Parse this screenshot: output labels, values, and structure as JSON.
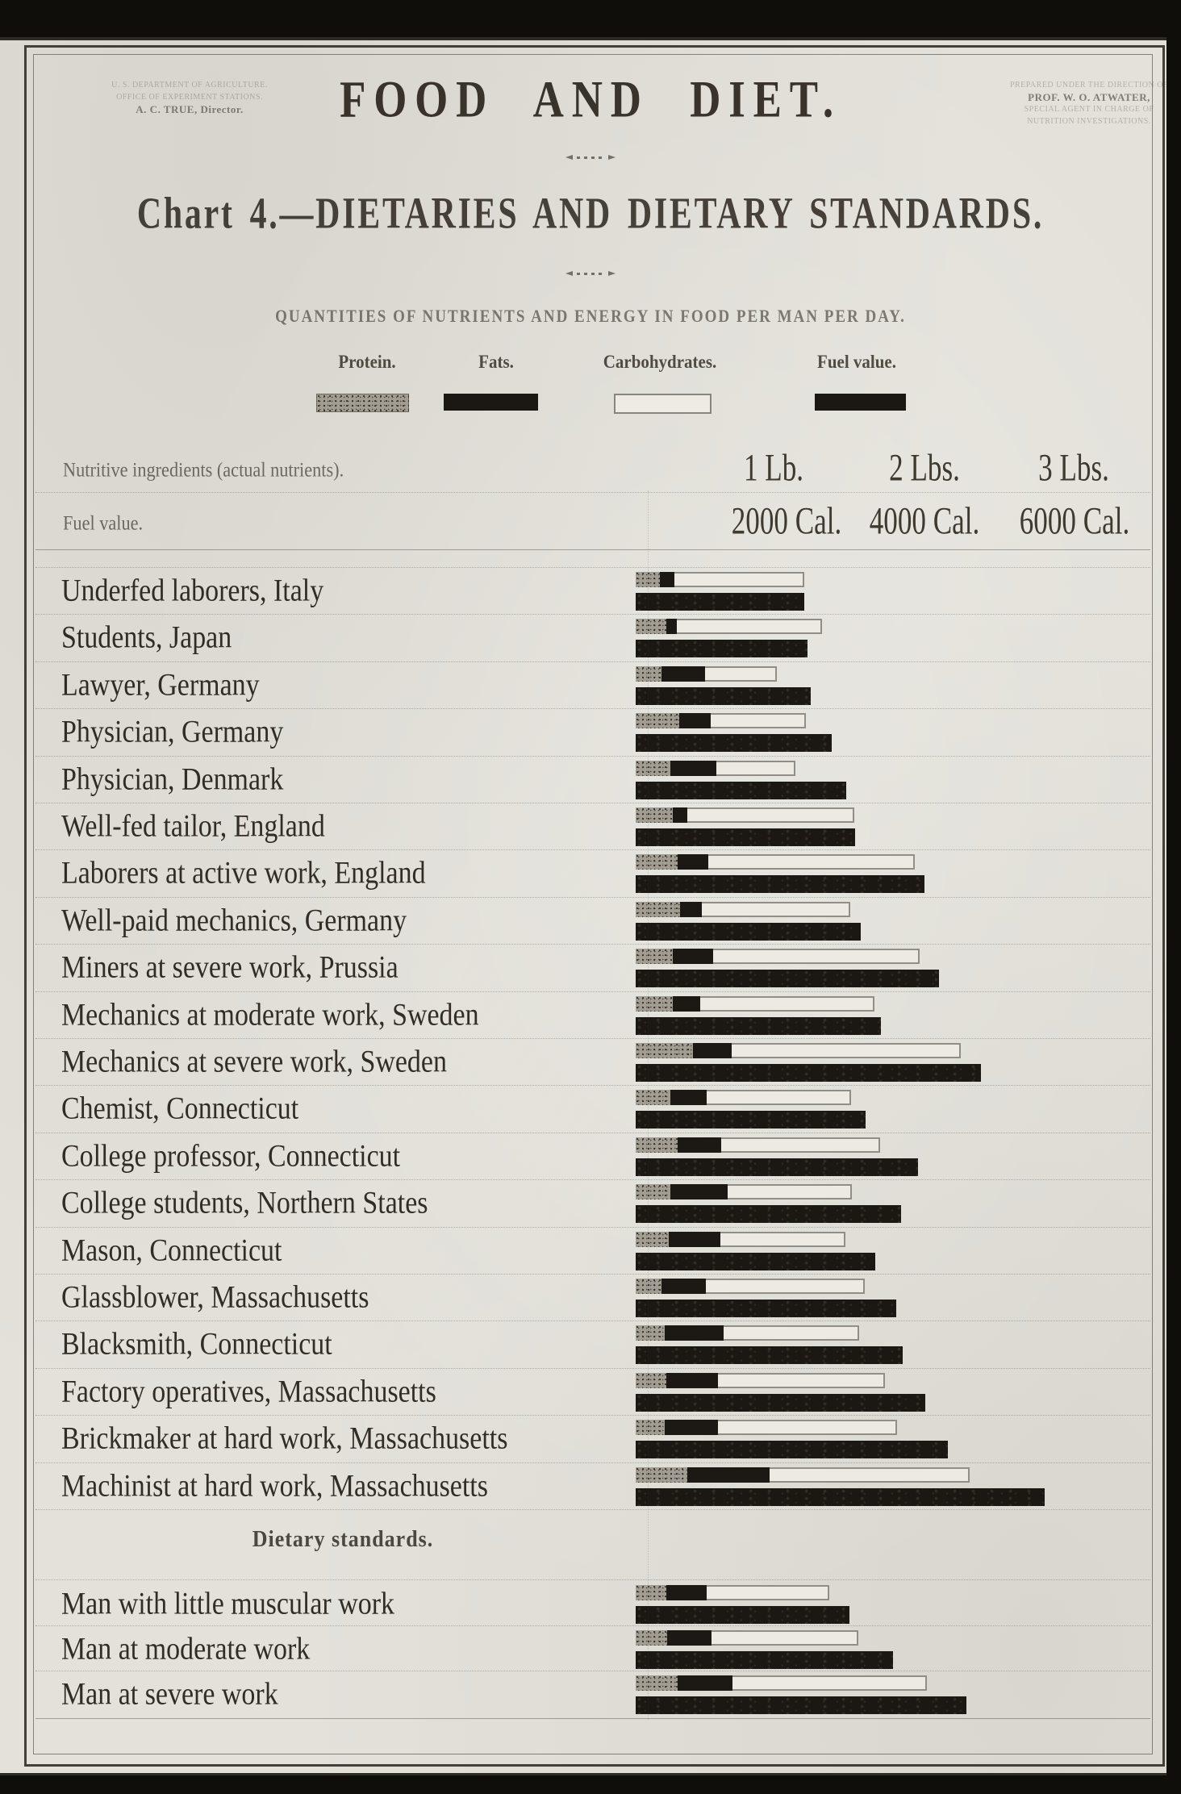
{
  "colors": {
    "paper": "#e3e1da",
    "ink": "#282319",
    "bar_black": "#1b1712",
    "protein_gray": "#a29d92",
    "carbohydrate_fill": "#eceae2"
  },
  "page": {
    "title": "FOOD  AND  DIET.",
    "chart_title": "Chart 4.—DIETARIES AND DIETARY STANDARDS.",
    "subtitle": "QUANTITIES OF NUTRIENTS AND ENERGY IN FOOD PER MAN PER DAY.",
    "credit_left": {
      "lines": [
        "U. S. DEPARTMENT OF AGRICULTURE.",
        "OFFICE OF EXPERIMENT STATIONS.",
        "A. C. TRUE, Director."
      ]
    },
    "credit_right": {
      "lines": [
        "PREPARED UNDER THE DIRECTION OF",
        "PROF. W. O. ATWATER,",
        "SPECIAL AGENT IN CHARGE OF",
        "NUTRITION INVESTIGATIONS."
      ]
    }
  },
  "legend": {
    "items": [
      {
        "label": "Protein.",
        "swatch": "protein"
      },
      {
        "label": "Fats.",
        "swatch": "fats"
      },
      {
        "label": "Carbohydrates.",
        "swatch": "carbohydrates"
      },
      {
        "label": "Fuel value.",
        "swatch": "fuel-value"
      }
    ]
  },
  "header": {
    "nutrients_label": "Nutritive ingredients (actual nutrients).",
    "fuel_label": "Fuel value.",
    "lb_ticks": [
      "1 Lb.",
      "2 Lbs.",
      "3 Lbs."
    ],
    "cal_ticks": [
      "2000 Cal.",
      "4000 Cal.",
      "6000 Cal."
    ]
  },
  "sections": {
    "standards_heading": "Dietary standards."
  },
  "chart_data": {
    "type": "bar",
    "orientation": "horizontal",
    "title": "Chart 4.—Dietaries and dietary standards",
    "subtitle": "Quantities of nutrients and energy in food per man per day",
    "series_legend": [
      "Protein",
      "Fats",
      "Carbohydrates",
      "Fuel value"
    ],
    "units": {
      "protein": "lb",
      "fats": "lb",
      "carbohydrates": "lb",
      "fuel": "Cal"
    },
    "x_axis": {
      "nutrients_ticks_lb": [
        1,
        2,
        3
      ],
      "nutrients_tick_labels": [
        "1 Lb.",
        "2 Lbs.",
        "3 Lbs."
      ],
      "fuel_ticks_cal": [
        2000,
        4000,
        6000
      ],
      "fuel_tick_labels": [
        "2000 Cal.",
        "4000 Cal.",
        "6000 Cal."
      ],
      "lb_max": 3.6,
      "grid": false
    },
    "rows": [
      {
        "label": "Underfed laborers, Italy",
        "group": "dietaries",
        "protein_lb": 0.17,
        "fats_lb": 0.1,
        "carbs_lb": 0.9,
        "fuel_cal": 2340
      },
      {
        "label": "Students, Japan",
        "group": "dietaries",
        "protein_lb": 0.21,
        "fats_lb": 0.07,
        "carbs_lb": 1.01,
        "fuel_cal": 2380
      },
      {
        "label": "Lawyer, Germany",
        "group": "dietaries",
        "protein_lb": 0.18,
        "fats_lb": 0.3,
        "carbs_lb": 0.5,
        "fuel_cal": 2430
      },
      {
        "label": "Physician, Germany",
        "group": "dietaries",
        "protein_lb": 0.3,
        "fats_lb": 0.22,
        "carbs_lb": 0.66,
        "fuel_cal": 2720
      },
      {
        "label": "Physician, Denmark",
        "group": "dietaries",
        "protein_lb": 0.24,
        "fats_lb": 0.32,
        "carbs_lb": 0.55,
        "fuel_cal": 2920
      },
      {
        "label": "Well-fed tailor, England",
        "group": "dietaries",
        "protein_lb": 0.26,
        "fats_lb": 0.1,
        "carbs_lb": 1.16,
        "fuel_cal": 3040
      },
      {
        "label": "Laborers at active work, England",
        "group": "dietaries",
        "protein_lb": 0.29,
        "fats_lb": 0.21,
        "carbs_lb": 1.43,
        "fuel_cal": 4010
      },
      {
        "label": "Well-paid mechanics, Germany",
        "group": "dietaries",
        "protein_lb": 0.31,
        "fats_lb": 0.15,
        "carbs_lb": 1.03,
        "fuel_cal": 3120
      },
      {
        "label": "Miners at severe work, Prussia",
        "group": "dietaries",
        "protein_lb": 0.26,
        "fats_lb": 0.28,
        "carbs_lb": 1.43,
        "fuel_cal": 4210
      },
      {
        "label": "Mechanics at moderate work, Sweden",
        "group": "dietaries",
        "protein_lb": 0.26,
        "fats_lb": 0.19,
        "carbs_lb": 1.21,
        "fuel_cal": 3400
      },
      {
        "label": "Mechanics at severe work, Sweden",
        "group": "dietaries",
        "protein_lb": 0.4,
        "fats_lb": 0.27,
        "carbs_lb": 1.59,
        "fuel_cal": 4790
      },
      {
        "label": "Chemist, Connecticut",
        "group": "dietaries",
        "protein_lb": 0.24,
        "fats_lb": 0.25,
        "carbs_lb": 1.0,
        "fuel_cal": 3190
      },
      {
        "label": "College professor, Connecticut",
        "group": "dietaries",
        "protein_lb": 0.29,
        "fats_lb": 0.3,
        "carbs_lb": 1.1,
        "fuel_cal": 3920
      },
      {
        "label": "College students, Northern States",
        "group": "dietaries",
        "protein_lb": 0.24,
        "fats_lb": 0.4,
        "carbs_lb": 0.86,
        "fuel_cal": 3680
      },
      {
        "label": "Mason, Connecticut",
        "group": "dietaries",
        "protein_lb": 0.23,
        "fats_lb": 0.36,
        "carbs_lb": 0.87,
        "fuel_cal": 3320
      },
      {
        "label": "Glassblower, Massachusetts",
        "group": "dietaries",
        "protein_lb": 0.18,
        "fats_lb": 0.31,
        "carbs_lb": 1.1,
        "fuel_cal": 3610
      },
      {
        "label": "Blacksmith, Connecticut",
        "group": "dietaries",
        "protein_lb": 0.2,
        "fats_lb": 0.41,
        "carbs_lb": 0.94,
        "fuel_cal": 3700
      },
      {
        "label": "Factory operatives, Massachusetts",
        "group": "dietaries",
        "protein_lb": 0.21,
        "fats_lb": 0.36,
        "carbs_lb": 1.16,
        "fuel_cal": 4020
      },
      {
        "label": "Brickmaker at hard work, Massachusetts",
        "group": "dietaries",
        "protein_lb": 0.2,
        "fats_lb": 0.37,
        "carbs_lb": 1.24,
        "fuel_cal": 4330
      },
      {
        "label": "Machinist at hard work, Massachusetts",
        "group": "dietaries",
        "protein_lb": 0.36,
        "fats_lb": 0.57,
        "carbs_lb": 1.39,
        "fuel_cal": 5670
      },
      {
        "label": "Man with little muscular work",
        "group": "standards",
        "protein_lb": 0.21,
        "fats_lb": 0.28,
        "carbs_lb": 0.85,
        "fuel_cal": 2970
      },
      {
        "label": "Man at moderate work",
        "group": "standards",
        "protein_lb": 0.22,
        "fats_lb": 0.31,
        "carbs_lb": 1.02,
        "fuel_cal": 3570
      },
      {
        "label": "Man at severe work",
        "group": "standards",
        "protein_lb": 0.29,
        "fats_lb": 0.38,
        "carbs_lb": 1.35,
        "fuel_cal": 4590
      }
    ]
  }
}
